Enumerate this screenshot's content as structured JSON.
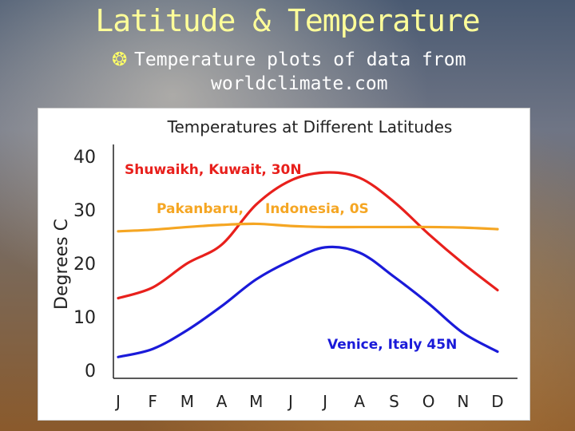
{
  "slide": {
    "title": "Latitude & Temperature",
    "bullet_icon": "globe-icon",
    "bullet_line1": "Temperature plots of data from",
    "bullet_line2": "worldclimate.com"
  },
  "chart_data": {
    "type": "line",
    "title": "Temperatures at Different Latitudes",
    "xlabel": "",
    "ylabel": "Degrees C",
    "categories": [
      "J",
      "F",
      "M",
      "A",
      "M",
      "J",
      "J",
      "A",
      "S",
      "O",
      "N",
      "D"
    ],
    "ylim": [
      0,
      40
    ],
    "yticks": [
      0,
      10,
      20,
      30,
      40
    ],
    "grid": false,
    "legend": "inline labels",
    "series": [
      {
        "name": "Shuwaikh, Kuwait, 30N",
        "color": "#e8201c",
        "values": [
          13.5,
          15.5,
          20,
          23.5,
          31,
          35.5,
          37,
          36,
          31.5,
          25.5,
          20,
          15
        ]
      },
      {
        "name": "Pakanbaru, Indonesia, 0S",
        "color": "#f5a623",
        "values": [
          26,
          26.3,
          26.8,
          27.2,
          27.4,
          27,
          26.8,
          26.8,
          26.8,
          26.8,
          26.7,
          26.4
        ]
      },
      {
        "name": "Venice, Italy 45N",
        "color": "#1a1ad9",
        "values": [
          2.5,
          4,
          7.5,
          12,
          17,
          20.5,
          23,
          22,
          17.5,
          12.5,
          7,
          3.5
        ]
      }
    ],
    "labels": {
      "kuwait": "Shuwaikh, Kuwait, 30N",
      "pakanbaru": "Pakanbaru,",
      "indonesia": "Indonesia, 0S",
      "venice": "Venice, Italy 45N"
    }
  }
}
